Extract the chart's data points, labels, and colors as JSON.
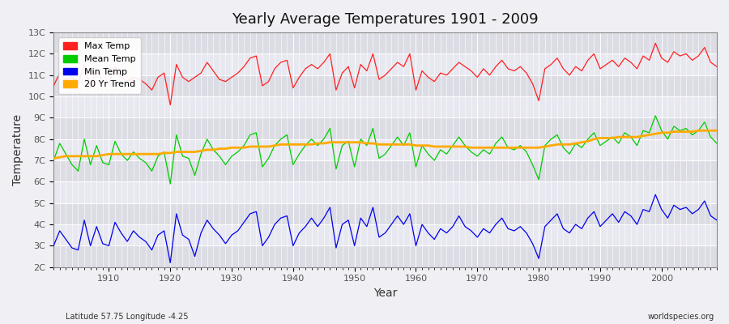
{
  "title": "Yearly Average Temperatures 1901 - 2009",
  "xlabel": "Year",
  "ylabel": "Temperature",
  "subtitle_left": "Latitude 57.75 Longitude -4.25",
  "subtitle_right": "worldspecies.org",
  "ylim": [
    2,
    13
  ],
  "yticks": [
    2,
    3,
    4,
    5,
    6,
    7,
    8,
    9,
    10,
    11,
    12,
    13
  ],
  "ytick_labels": [
    "2C",
    "3C",
    "4C",
    "5C",
    "6C",
    "7C",
    "8C",
    "9C",
    "10C",
    "11C",
    "12C",
    "13C"
  ],
  "xlim": [
    1901,
    2009
  ],
  "xticks": [
    1910,
    1920,
    1930,
    1940,
    1950,
    1960,
    1970,
    1980,
    1990,
    2000
  ],
  "bg_color": "#f0f0f4",
  "plot_bg_color": "#f0f0f4",
  "band_color_light": "#e8e8ee",
  "band_color_dark": "#d8d8e0",
  "grid_color": "#ffffff",
  "max_temp_color": "#ff2020",
  "mean_temp_color": "#00cc00",
  "min_temp_color": "#0000ee",
  "trend_color": "#ffaa00",
  "legend_labels": [
    "Max Temp",
    "Mean Temp",
    "Min Temp",
    "20 Yr Trend"
  ],
  "years": [
    1901,
    1902,
    1903,
    1904,
    1905,
    1906,
    1907,
    1908,
    1909,
    1910,
    1911,
    1912,
    1913,
    1914,
    1915,
    1916,
    1917,
    1918,
    1919,
    1920,
    1921,
    1922,
    1923,
    1924,
    1925,
    1926,
    1927,
    1928,
    1929,
    1930,
    1931,
    1932,
    1933,
    1934,
    1935,
    1936,
    1937,
    1938,
    1939,
    1940,
    1941,
    1942,
    1943,
    1944,
    1945,
    1946,
    1947,
    1948,
    1949,
    1950,
    1951,
    1952,
    1953,
    1954,
    1955,
    1956,
    1957,
    1958,
    1959,
    1960,
    1961,
    1962,
    1963,
    1964,
    1965,
    1966,
    1967,
    1968,
    1969,
    1970,
    1971,
    1972,
    1973,
    1974,
    1975,
    1976,
    1977,
    1978,
    1979,
    1980,
    1981,
    1982,
    1983,
    1984,
    1985,
    1986,
    1987,
    1988,
    1989,
    1990,
    1991,
    1992,
    1993,
    1994,
    1995,
    1996,
    1997,
    1998,
    1999,
    2000,
    2001,
    2002,
    2003,
    2004,
    2005,
    2006,
    2007,
    2008,
    2009
  ],
  "max_temp": [
    10.5,
    11.1,
    10.8,
    10.9,
    10.6,
    11.5,
    10.4,
    11.3,
    10.7,
    10.6,
    11.4,
    10.9,
    10.7,
    10.9,
    10.8,
    10.6,
    10.3,
    10.9,
    11.1,
    9.6,
    11.5,
    10.9,
    10.7,
    10.9,
    11.1,
    11.6,
    11.2,
    10.8,
    10.7,
    10.9,
    11.1,
    11.4,
    11.8,
    11.9,
    10.5,
    10.7,
    11.3,
    11.6,
    11.7,
    10.4,
    10.9,
    11.3,
    11.5,
    11.3,
    11.6,
    12.0,
    10.3,
    11.1,
    11.4,
    10.4,
    11.5,
    11.2,
    12.0,
    10.8,
    11.0,
    11.3,
    11.6,
    11.4,
    12.0,
    10.3,
    11.2,
    10.9,
    10.7,
    11.1,
    11.0,
    11.3,
    11.6,
    11.4,
    11.2,
    10.9,
    11.3,
    11.0,
    11.4,
    11.7,
    11.3,
    11.2,
    11.4,
    11.1,
    10.6,
    9.8,
    11.3,
    11.5,
    11.8,
    11.3,
    11.0,
    11.4,
    11.2,
    11.7,
    12.0,
    11.3,
    11.5,
    11.7,
    11.4,
    11.8,
    11.6,
    11.3,
    11.9,
    11.7,
    12.5,
    11.8,
    11.6,
    12.1,
    11.9,
    12.0,
    11.7,
    11.9,
    12.3,
    11.6,
    11.4
  ],
  "mean_temp": [
    7.0,
    7.8,
    7.3,
    6.8,
    6.5,
    8.0,
    6.8,
    7.7,
    6.9,
    6.8,
    7.9,
    7.3,
    7.0,
    7.4,
    7.1,
    6.9,
    6.5,
    7.2,
    7.4,
    5.9,
    8.2,
    7.2,
    7.1,
    6.3,
    7.3,
    8.0,
    7.5,
    7.2,
    6.8,
    7.2,
    7.4,
    7.7,
    8.2,
    8.3,
    6.7,
    7.1,
    7.7,
    8.0,
    8.2,
    6.8,
    7.3,
    7.7,
    8.0,
    7.7,
    8.0,
    8.5,
    6.6,
    7.7,
    7.9,
    6.7,
    8.0,
    7.7,
    8.5,
    7.1,
    7.3,
    7.7,
    8.1,
    7.7,
    8.3,
    6.7,
    7.7,
    7.3,
    7.0,
    7.5,
    7.3,
    7.7,
    8.1,
    7.7,
    7.4,
    7.2,
    7.5,
    7.3,
    7.8,
    8.1,
    7.6,
    7.5,
    7.7,
    7.4,
    6.8,
    6.1,
    7.7,
    8.0,
    8.2,
    7.6,
    7.3,
    7.8,
    7.6,
    8.0,
    8.3,
    7.7,
    7.9,
    8.1,
    7.8,
    8.3,
    8.1,
    7.7,
    8.4,
    8.3,
    9.1,
    8.4,
    8.0,
    8.6,
    8.4,
    8.5,
    8.2,
    8.4,
    8.8,
    8.1,
    7.8
  ],
  "min_temp": [
    3.0,
    3.7,
    3.3,
    2.9,
    2.8,
    4.2,
    3.0,
    3.9,
    3.1,
    3.0,
    4.1,
    3.6,
    3.2,
    3.7,
    3.4,
    3.2,
    2.8,
    3.5,
    3.7,
    2.2,
    4.5,
    3.5,
    3.3,
    2.5,
    3.6,
    4.2,
    3.8,
    3.5,
    3.1,
    3.5,
    3.7,
    4.1,
    4.5,
    4.6,
    3.0,
    3.4,
    4.0,
    4.3,
    4.4,
    3.0,
    3.6,
    3.9,
    4.3,
    3.9,
    4.3,
    4.8,
    2.9,
    4.0,
    4.2,
    3.0,
    4.3,
    3.9,
    4.8,
    3.4,
    3.6,
    4.0,
    4.4,
    4.0,
    4.5,
    3.0,
    4.0,
    3.6,
    3.3,
    3.8,
    3.6,
    3.9,
    4.4,
    3.9,
    3.7,
    3.4,
    3.8,
    3.6,
    4.0,
    4.3,
    3.8,
    3.7,
    3.9,
    3.6,
    3.1,
    2.4,
    3.9,
    4.2,
    4.5,
    3.8,
    3.6,
    4.0,
    3.8,
    4.3,
    4.6,
    3.9,
    4.2,
    4.5,
    4.1,
    4.6,
    4.4,
    4.0,
    4.7,
    4.6,
    5.4,
    4.7,
    4.3,
    4.9,
    4.7,
    4.8,
    4.5,
    4.7,
    5.1,
    4.4,
    4.2
  ],
  "trend": [
    7.1,
    7.15,
    7.2,
    7.2,
    7.2,
    7.2,
    7.2,
    7.2,
    7.25,
    7.3,
    7.3,
    7.3,
    7.3,
    7.3,
    7.3,
    7.3,
    7.3,
    7.3,
    7.35,
    7.35,
    7.4,
    7.4,
    7.4,
    7.4,
    7.45,
    7.5,
    7.5,
    7.55,
    7.55,
    7.6,
    7.6,
    7.6,
    7.65,
    7.65,
    7.65,
    7.65,
    7.7,
    7.75,
    7.75,
    7.75,
    7.75,
    7.75,
    7.75,
    7.8,
    7.8,
    7.85,
    7.85,
    7.85,
    7.85,
    7.85,
    7.85,
    7.8,
    7.8,
    7.75,
    7.75,
    7.75,
    7.75,
    7.75,
    7.75,
    7.7,
    7.7,
    7.7,
    7.65,
    7.65,
    7.65,
    7.65,
    7.65,
    7.65,
    7.6,
    7.6,
    7.6,
    7.6,
    7.6,
    7.6,
    7.6,
    7.6,
    7.6,
    7.6,
    7.6,
    7.6,
    7.65,
    7.7,
    7.75,
    7.75,
    7.75,
    7.8,
    7.85,
    7.9,
    8.0,
    8.05,
    8.05,
    8.05,
    8.1,
    8.1,
    8.1,
    8.1,
    8.15,
    8.2,
    8.25,
    8.3,
    8.3,
    8.35,
    8.35,
    8.35,
    8.35,
    8.4,
    8.4,
    8.4,
    8.4
  ]
}
